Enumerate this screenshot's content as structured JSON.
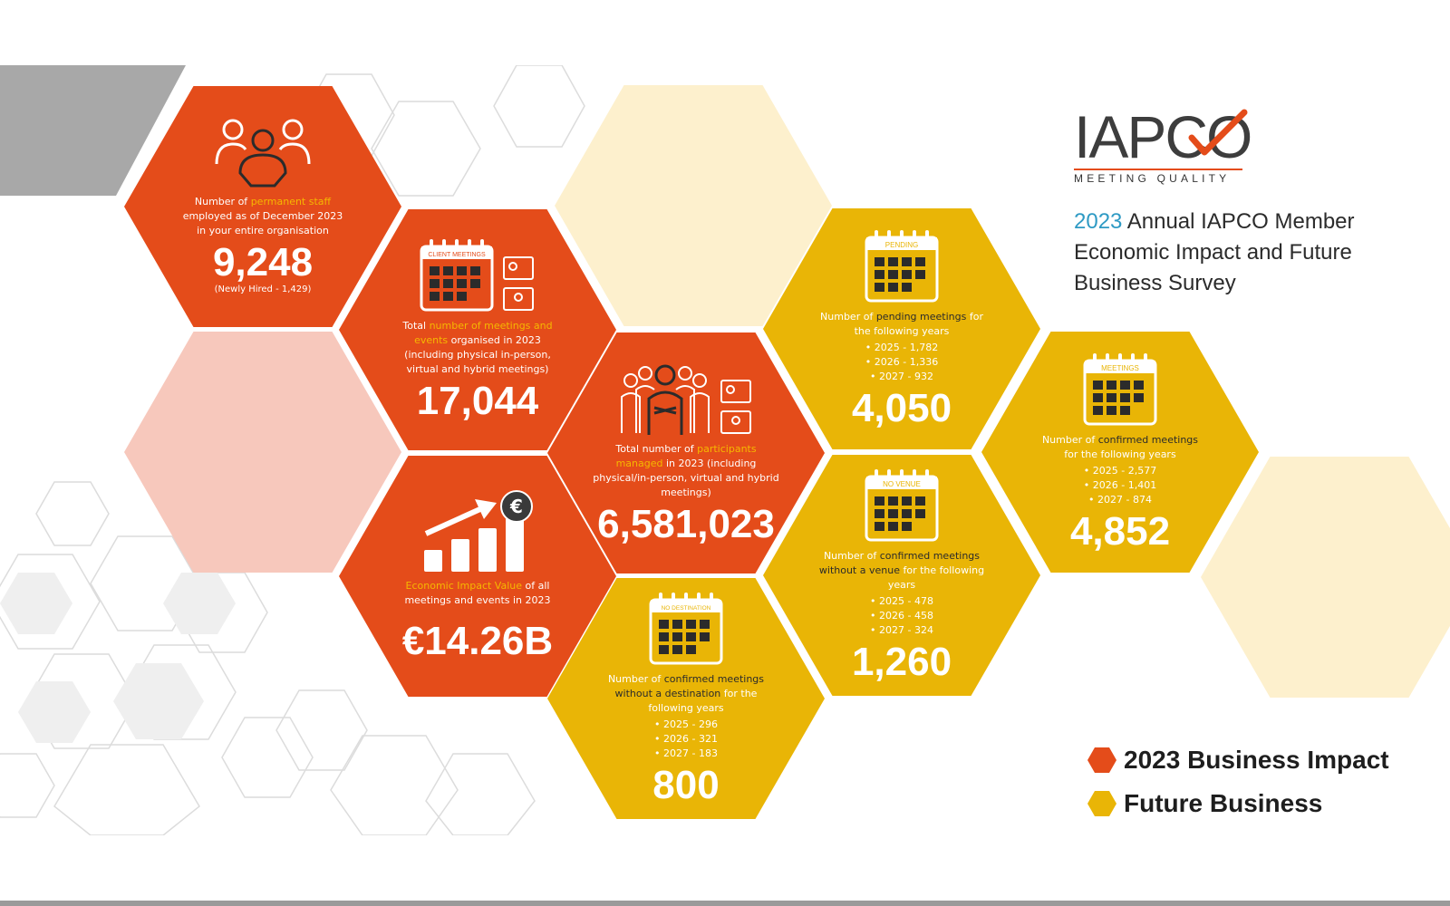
{
  "colors": {
    "impact": "#e44c1a",
    "future": "#e9b506",
    "highlight": "#f5b800",
    "year_accent": "#2e9ac4"
  },
  "brand": {
    "logo_text": "IAPCO",
    "logo_subtitle": "MEETING QUALITY"
  },
  "survey": {
    "year": "2023",
    "title": "Annual IAPCO Member Economic Impact and Future Business Survey"
  },
  "legend": {
    "impact_label": "2023 Business Impact",
    "future_label": "Future Business"
  },
  "staff": {
    "icon": "team-icon",
    "desc_pre": "Number of ",
    "desc_hl": "permanent staff",
    "desc_post": " employed as of December 2023 in your entire organisation",
    "value": "9,248",
    "note": "(Newly Hired - 1,429)"
  },
  "meetings": {
    "icon": "client-meetings-calendar-icon",
    "calendar_label": "CLIENT MEETINGS",
    "desc_pre": "Total ",
    "desc_hl": "number of meetings and events",
    "desc_post": " organised in 2023 (including physical in-person, virtual and hybrid meetings)",
    "value": "17,044"
  },
  "participants": {
    "icon": "participants-icon",
    "desc_pre": "Total number of ",
    "desc_hl": "participants managed",
    "desc_post": " in 2023 (including physical/in-person, virtual and hybrid meetings)",
    "value": "6,581,023"
  },
  "economic": {
    "icon": "growth-chart-icon",
    "currency_symbol": "€",
    "desc_hl": "Economic Impact Value",
    "desc_post": " of all meetings and events in 2023",
    "value": "€14.26B"
  },
  "pending": {
    "icon": "pending-calendar-icon",
    "calendar_label": "PENDING",
    "desc_pre": "Number of ",
    "desc_hl": "pending meetings",
    "desc_post": " for the following years",
    "years": [
      "2025  -  1,782",
      "2026  -  1,336",
      "2027  -  932"
    ],
    "value": "4,050"
  },
  "confirmed": {
    "icon": "meetings-calendar-icon",
    "calendar_label": "MEETINGS",
    "desc_pre": "Number of ",
    "desc_hl": "confirmed meetings",
    "desc_post": " for the following years",
    "years": [
      "2025  -  2,577",
      "2026  -  1,401",
      "2027  -  874"
    ],
    "value": "4,852"
  },
  "no_venue": {
    "icon": "no-venue-calendar-icon",
    "calendar_label": "NO VENUE",
    "desc_pre": "Number of ",
    "desc_hl": "confirmed meetings without a venue",
    "desc_post": " for the following years",
    "years": [
      "2025  -  478",
      "2026  -  458",
      "2027  -  324"
    ],
    "value": "1,260"
  },
  "no_destination": {
    "icon": "no-destination-calendar-icon",
    "calendar_label": "NO DESTINATION",
    "desc_pre": "Number of ",
    "desc_hl": "confirmed meetings without a destination",
    "desc_post": " for the following years",
    "years": [
      "2025  -  296",
      "2026  -  321",
      "2027  -  183"
    ],
    "value": "800"
  }
}
